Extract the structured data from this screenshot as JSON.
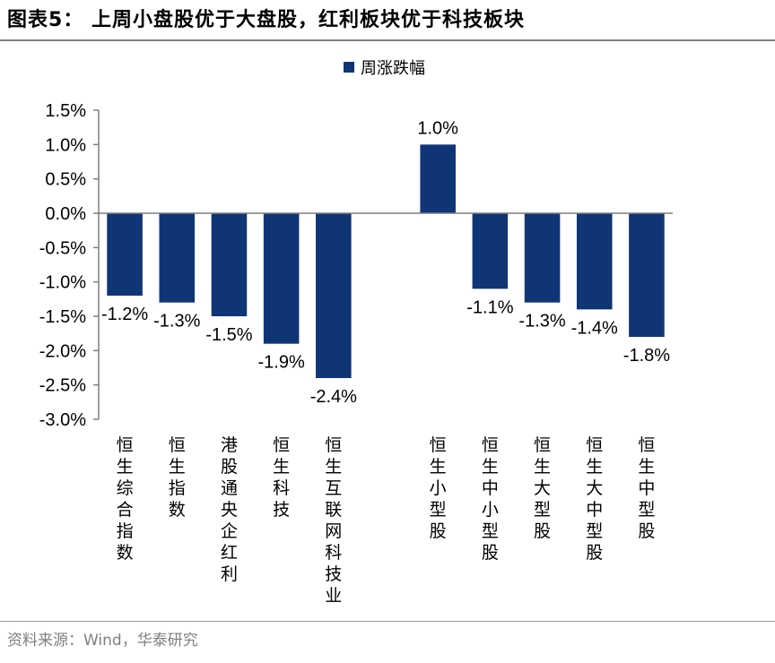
{
  "title": "图表5：  上周小盘股优于大盘股，红利板块优于科技板块",
  "source": "资料来源：Wind，华泰研究",
  "colors": {
    "bar": "#0f3576",
    "axis": "#7f7f7f"
  },
  "chart_data": {
    "type": "bar",
    "categories": [
      "恒生综合指数",
      "恒生指数",
      "港股通央企红利",
      "恒生科技",
      "恒生互联网科技业",
      "",
      "恒生小型股",
      "恒生中小型股",
      "恒生大型股",
      "恒生大中型股",
      "恒生中型股"
    ],
    "series": [
      {
        "name": "周涨跌幅",
        "values": [
          -1.2,
          -1.3,
          -1.5,
          -1.9,
          -2.4,
          null,
          1.0,
          -1.1,
          -1.3,
          -1.4,
          -1.8
        ]
      }
    ],
    "data_labels": [
      "-1.2%",
      "-1.3%",
      "-1.5%",
      "-1.9%",
      "-2.4%",
      "",
      "1.0%",
      "-1.1%",
      "-1.3%",
      "-1.4%",
      "-1.8%"
    ],
    "ylim": [
      -3.0,
      1.5
    ],
    "yticks": [
      1.5,
      1.0,
      0.5,
      0.0,
      -0.5,
      -1.0,
      -1.5,
      -2.0,
      -2.5,
      -3.0
    ],
    "ytick_labels": [
      "1.5%",
      "1.0%",
      "0.5%",
      "0.0%",
      "-0.5%",
      "-1.0%",
      "-1.5%",
      "-2.0%",
      "-2.5%",
      "-3.0%"
    ],
    "legend_position": "top-center",
    "grid": false
  }
}
